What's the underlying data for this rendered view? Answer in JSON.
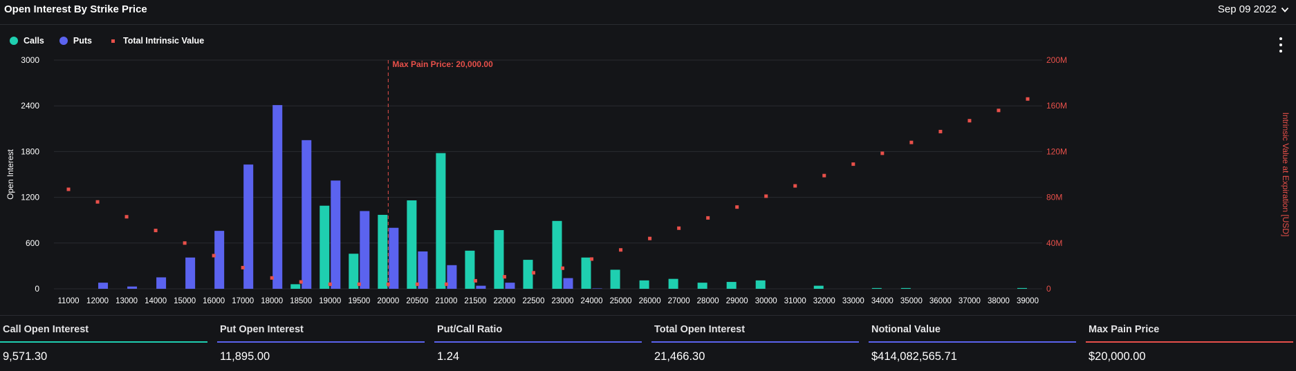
{
  "header": {
    "title": "Open Interest By Strike Price",
    "date": "Sep 09 2022"
  },
  "legend": {
    "calls": "Calls",
    "puts": "Puts",
    "intrinsic": "Total Intrinsic Value"
  },
  "colors": {
    "calls": "#1fcfb0",
    "puts": "#5b63ef",
    "intrinsic": "#e8504a",
    "background": "#141518"
  },
  "chart_data": {
    "type": "bar",
    "categories": [
      "11000",
      "12000",
      "13000",
      "14000",
      "15000",
      "16000",
      "17000",
      "18000",
      "18500",
      "19000",
      "19500",
      "20000",
      "20500",
      "21000",
      "21500",
      "22000",
      "22500",
      "23000",
      "24000",
      "25000",
      "26000",
      "27000",
      "28000",
      "29000",
      "30000",
      "31000",
      "32000",
      "33000",
      "34000",
      "35000",
      "36000",
      "37000",
      "38000",
      "39000"
    ],
    "series": [
      {
        "name": "Calls",
        "axis": "left",
        "values": [
          0,
          0,
          0,
          0,
          0,
          0,
          0,
          0,
          60,
          1090,
          460,
          970,
          1160,
          1780,
          500,
          770,
          380,
          890,
          410,
          250,
          110,
          130,
          80,
          90,
          110,
          0,
          40,
          0,
          10,
          10,
          0,
          0,
          0,
          10
        ]
      },
      {
        "name": "Puts",
        "axis": "left",
        "values": [
          0,
          80,
          30,
          150,
          410,
          760,
          1630,
          2410,
          1950,
          1420,
          1020,
          800,
          490,
          310,
          40,
          80,
          0,
          140,
          5,
          0,
          0,
          0,
          0,
          0,
          0,
          0,
          0,
          0,
          0,
          0,
          0,
          0,
          0,
          0
        ]
      },
      {
        "name": "Total Intrinsic Value",
        "axis": "right",
        "type": "scatter",
        "values": [
          87000000,
          76000000,
          63000000,
          51000000,
          40000000,
          29000000,
          18500000,
          9500000,
          6000000,
          4000000,
          4000000,
          4000000,
          4000000,
          4000000,
          7000000,
          10500000,
          14000000,
          18000000,
          26000000,
          34000000,
          44000000,
          53000000,
          62000000,
          71500000,
          81000000,
          90000000,
          99000000,
          109000000,
          118500000,
          128000000,
          137500000,
          147000000,
          156000000,
          166000000
        ]
      }
    ],
    "ylabel": "Open Interest",
    "ylim": [
      0,
      3000
    ],
    "yticks": [
      "0",
      "600",
      "1200",
      "1800",
      "2400",
      "3000"
    ],
    "y2label": "Intrinsic Value at Expiration [USD]",
    "y2lim": [
      0,
      200000000
    ],
    "y2ticks": [
      "0",
      "40M",
      "80M",
      "120M",
      "160M",
      "200M"
    ],
    "annotation": {
      "text": "Max Pain Price: 20,000.00",
      "category": "20000"
    },
    "grid": true,
    "legend_position": "top-left"
  },
  "stats": [
    {
      "label": "Call Open Interest",
      "value": "9,571.30",
      "color": "#1fcfb0"
    },
    {
      "label": "Put Open Interest",
      "value": "11,895.00",
      "color": "#5b63ef"
    },
    {
      "label": "Put/Call Ratio",
      "value": "1.24",
      "color": "#5b63ef"
    },
    {
      "label": "Total Open Interest",
      "value": "21,466.30",
      "color": "#5b63ef"
    },
    {
      "label": "Notional Value",
      "value": "$414,082,565.71",
      "color": "#5b63ef"
    },
    {
      "label": "Max Pain Price",
      "value": "$20,000.00",
      "color": "#e8504a"
    }
  ]
}
